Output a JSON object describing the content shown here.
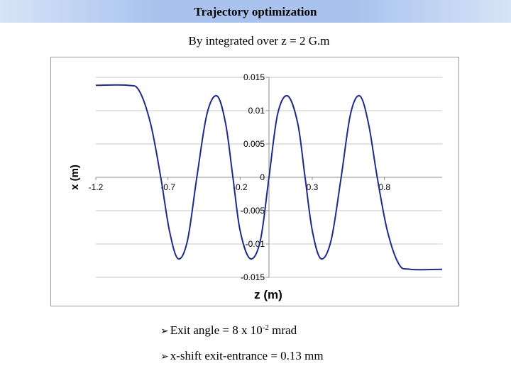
{
  "header": {
    "title": "Trajectory optimization"
  },
  "subtitle": "By integrated over z = 2 G.m",
  "chart_data": {
    "type": "line",
    "title": "",
    "xlabel": "z (m)",
    "ylabel": "x (m)",
    "xlim": [
      -1.2,
      1.2
    ],
    "ylim": [
      -0.015,
      0.015
    ],
    "x_ticks": [
      "-1.2",
      "-0.7",
      "-0.2",
      "0.3",
      "0.8"
    ],
    "x_tick_values": [
      -1.2,
      -0.7,
      -0.2,
      0.3,
      0.8
    ],
    "y_ticks": [
      "0.015",
      "0.01",
      "0.005",
      "0",
      "-0.005",
      "-0.01",
      "-0.015"
    ],
    "y_tick_values": [
      0.015,
      0.01,
      0.005,
      0,
      -0.005,
      -0.01,
      -0.015
    ],
    "grid": "horizontal",
    "series": [
      {
        "color": "#1f2a8a",
        "x": [
          -1.2,
          -0.98,
          -0.9,
          -0.82,
          -0.75,
          -0.69,
          -0.63,
          -0.565,
          -0.5,
          -0.43,
          -0.36,
          -0.3,
          -0.25,
          -0.2,
          -0.13,
          -0.06,
          0,
          0.06,
          0.13,
          0.2,
          0.25,
          0.3,
          0.36,
          0.43,
          0.5,
          0.565,
          0.63,
          0.69,
          0.75,
          0.82,
          0.9,
          0.98,
          1.2
        ],
        "y": [
          0.0138,
          0.0138,
          0.013,
          0.008,
          0.0,
          -0.008,
          -0.0122,
          -0.0095,
          0.0,
          0.0095,
          0.0122,
          0.008,
          0.0,
          -0.008,
          -0.0122,
          -0.0095,
          0.0,
          0.0095,
          0.0122,
          0.008,
          0.0,
          -0.008,
          -0.0122,
          -0.0095,
          0.0,
          0.0095,
          0.0122,
          0.008,
          0.0,
          -0.008,
          -0.013,
          -0.0138,
          -0.0138
        ]
      }
    ]
  },
  "bullets": [
    {
      "text_before": "Exit angle = 8 x 10",
      "superscript": "-2",
      "text_after": " mrad"
    },
    {
      "text_before": "x-shift exit-entrance = 0.13 mm",
      "superscript": "",
      "text_after": ""
    }
  ],
  "icons": {
    "bullet": "arrow-bullet-icon"
  }
}
